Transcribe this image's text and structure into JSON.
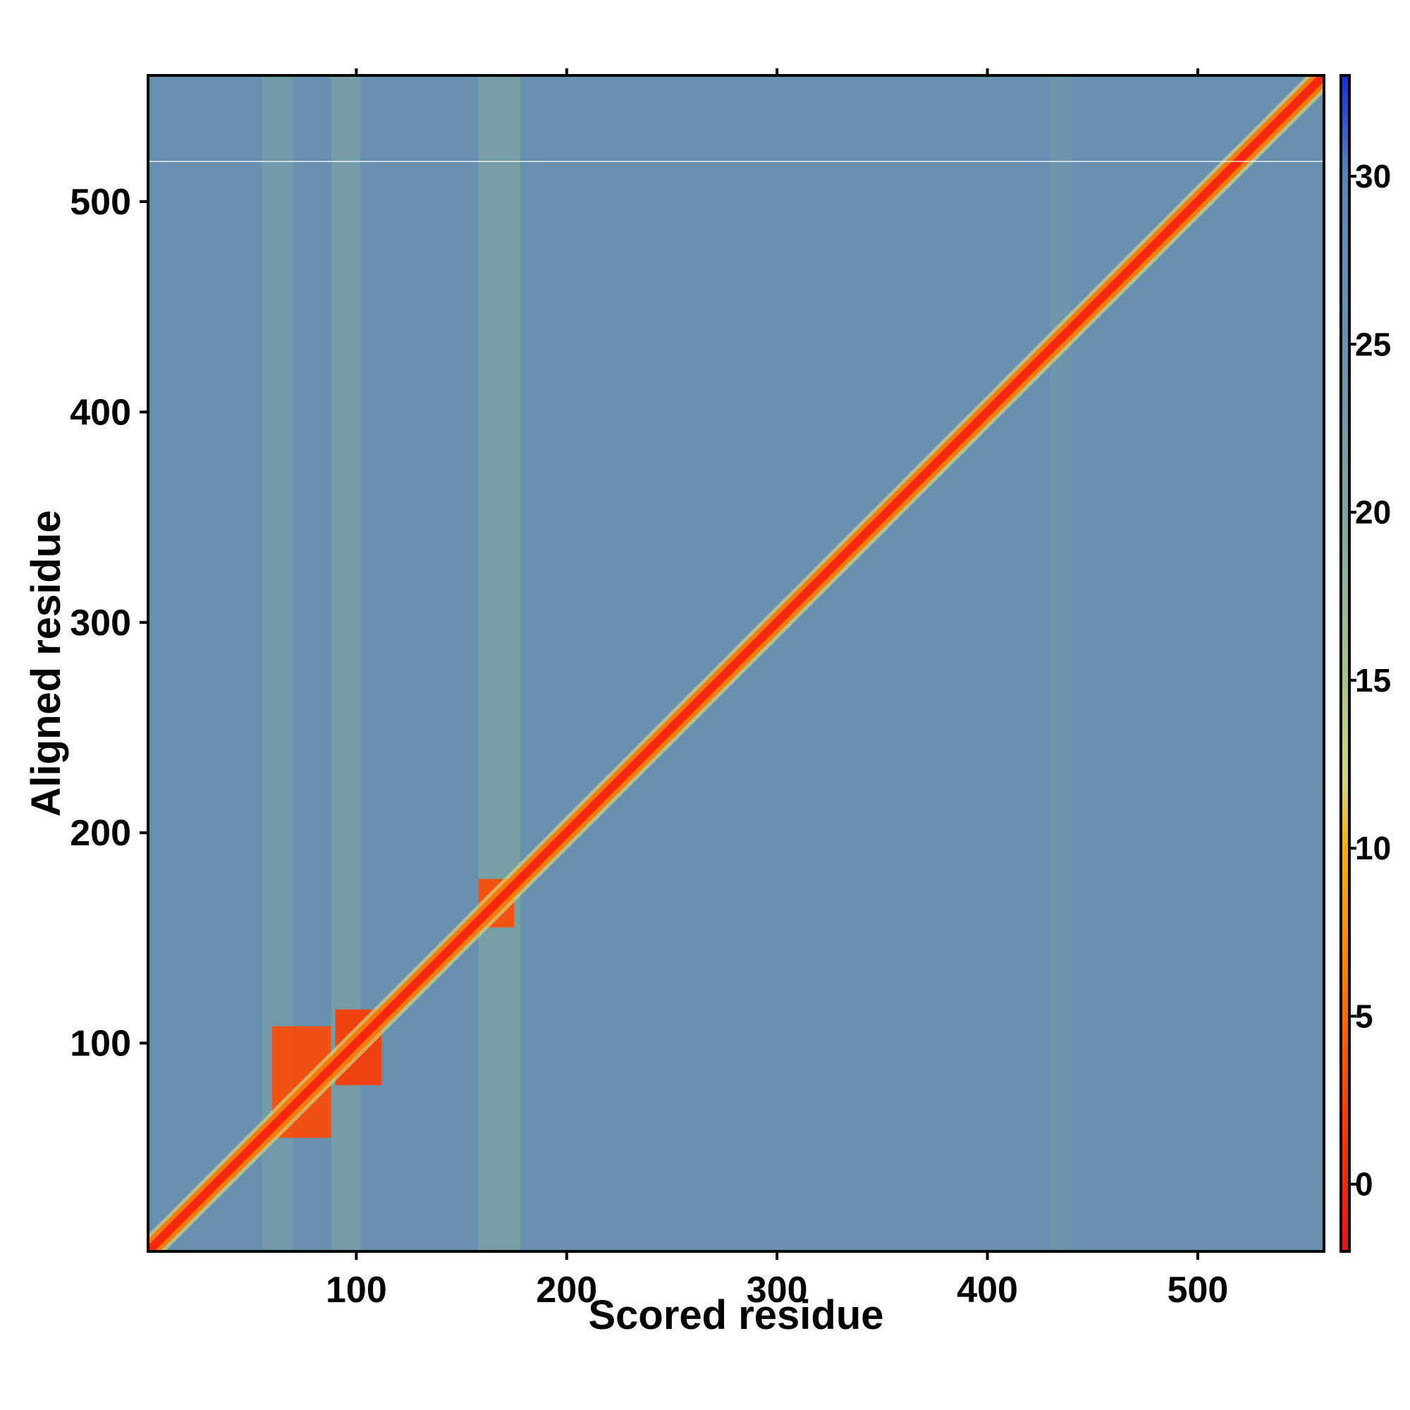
{
  "chart_data": {
    "type": "heatmap",
    "title": "",
    "xlabel": "Scored residue",
    "ylabel": "Aligned residue",
    "xlim": [
      1,
      560
    ],
    "ylim": [
      1,
      560
    ],
    "x_ticks": [
      100,
      200,
      300,
      400,
      500
    ],
    "y_ticks": [
      100,
      200,
      300,
      400,
      500
    ],
    "colorbar": {
      "ticks": [
        0,
        5,
        10,
        15,
        20,
        25,
        30
      ],
      "range": [
        -2,
        33
      ],
      "colors": [
        {
          "value": -2,
          "color": "#e8141a"
        },
        {
          "value": 2,
          "color": "#ff3a00"
        },
        {
          "value": 6,
          "color": "#ff7a00"
        },
        {
          "value": 10,
          "color": "#f5b301"
        },
        {
          "value": 12,
          "color": "#d4d47a"
        },
        {
          "value": 15,
          "color": "#a8c48a"
        },
        {
          "value": 20,
          "color": "#7fa3a3"
        },
        {
          "value": 25,
          "color": "#6a92ae"
        },
        {
          "value": 30,
          "color": "#5a86b6"
        },
        {
          "value": 33,
          "color": "#1a2be0"
        }
      ]
    },
    "background_value": 26,
    "diagonal_value": 0,
    "blocks": [
      {
        "x": [
          60,
          88
        ],
        "y": [
          55,
          108
        ],
        "value": 3
      },
      {
        "x": [
          90,
          112
        ],
        "y": [
          80,
          116
        ],
        "value": 2
      },
      {
        "x": [
          158,
          175
        ],
        "y": [
          155,
          178
        ],
        "value": 3
      }
    ],
    "bands": [
      {
        "orientation": "vertical",
        "x": [
          55,
          70
        ],
        "value": 20
      },
      {
        "orientation": "vertical",
        "x": [
          88,
          102
        ],
        "value": 19
      },
      {
        "orientation": "vertical",
        "x": [
          158,
          178
        ],
        "value": 18
      },
      {
        "orientation": "vertical",
        "x": [
          430,
          440
        ],
        "value": 22
      }
    ],
    "grid": false,
    "legend": "colorbar right"
  }
}
